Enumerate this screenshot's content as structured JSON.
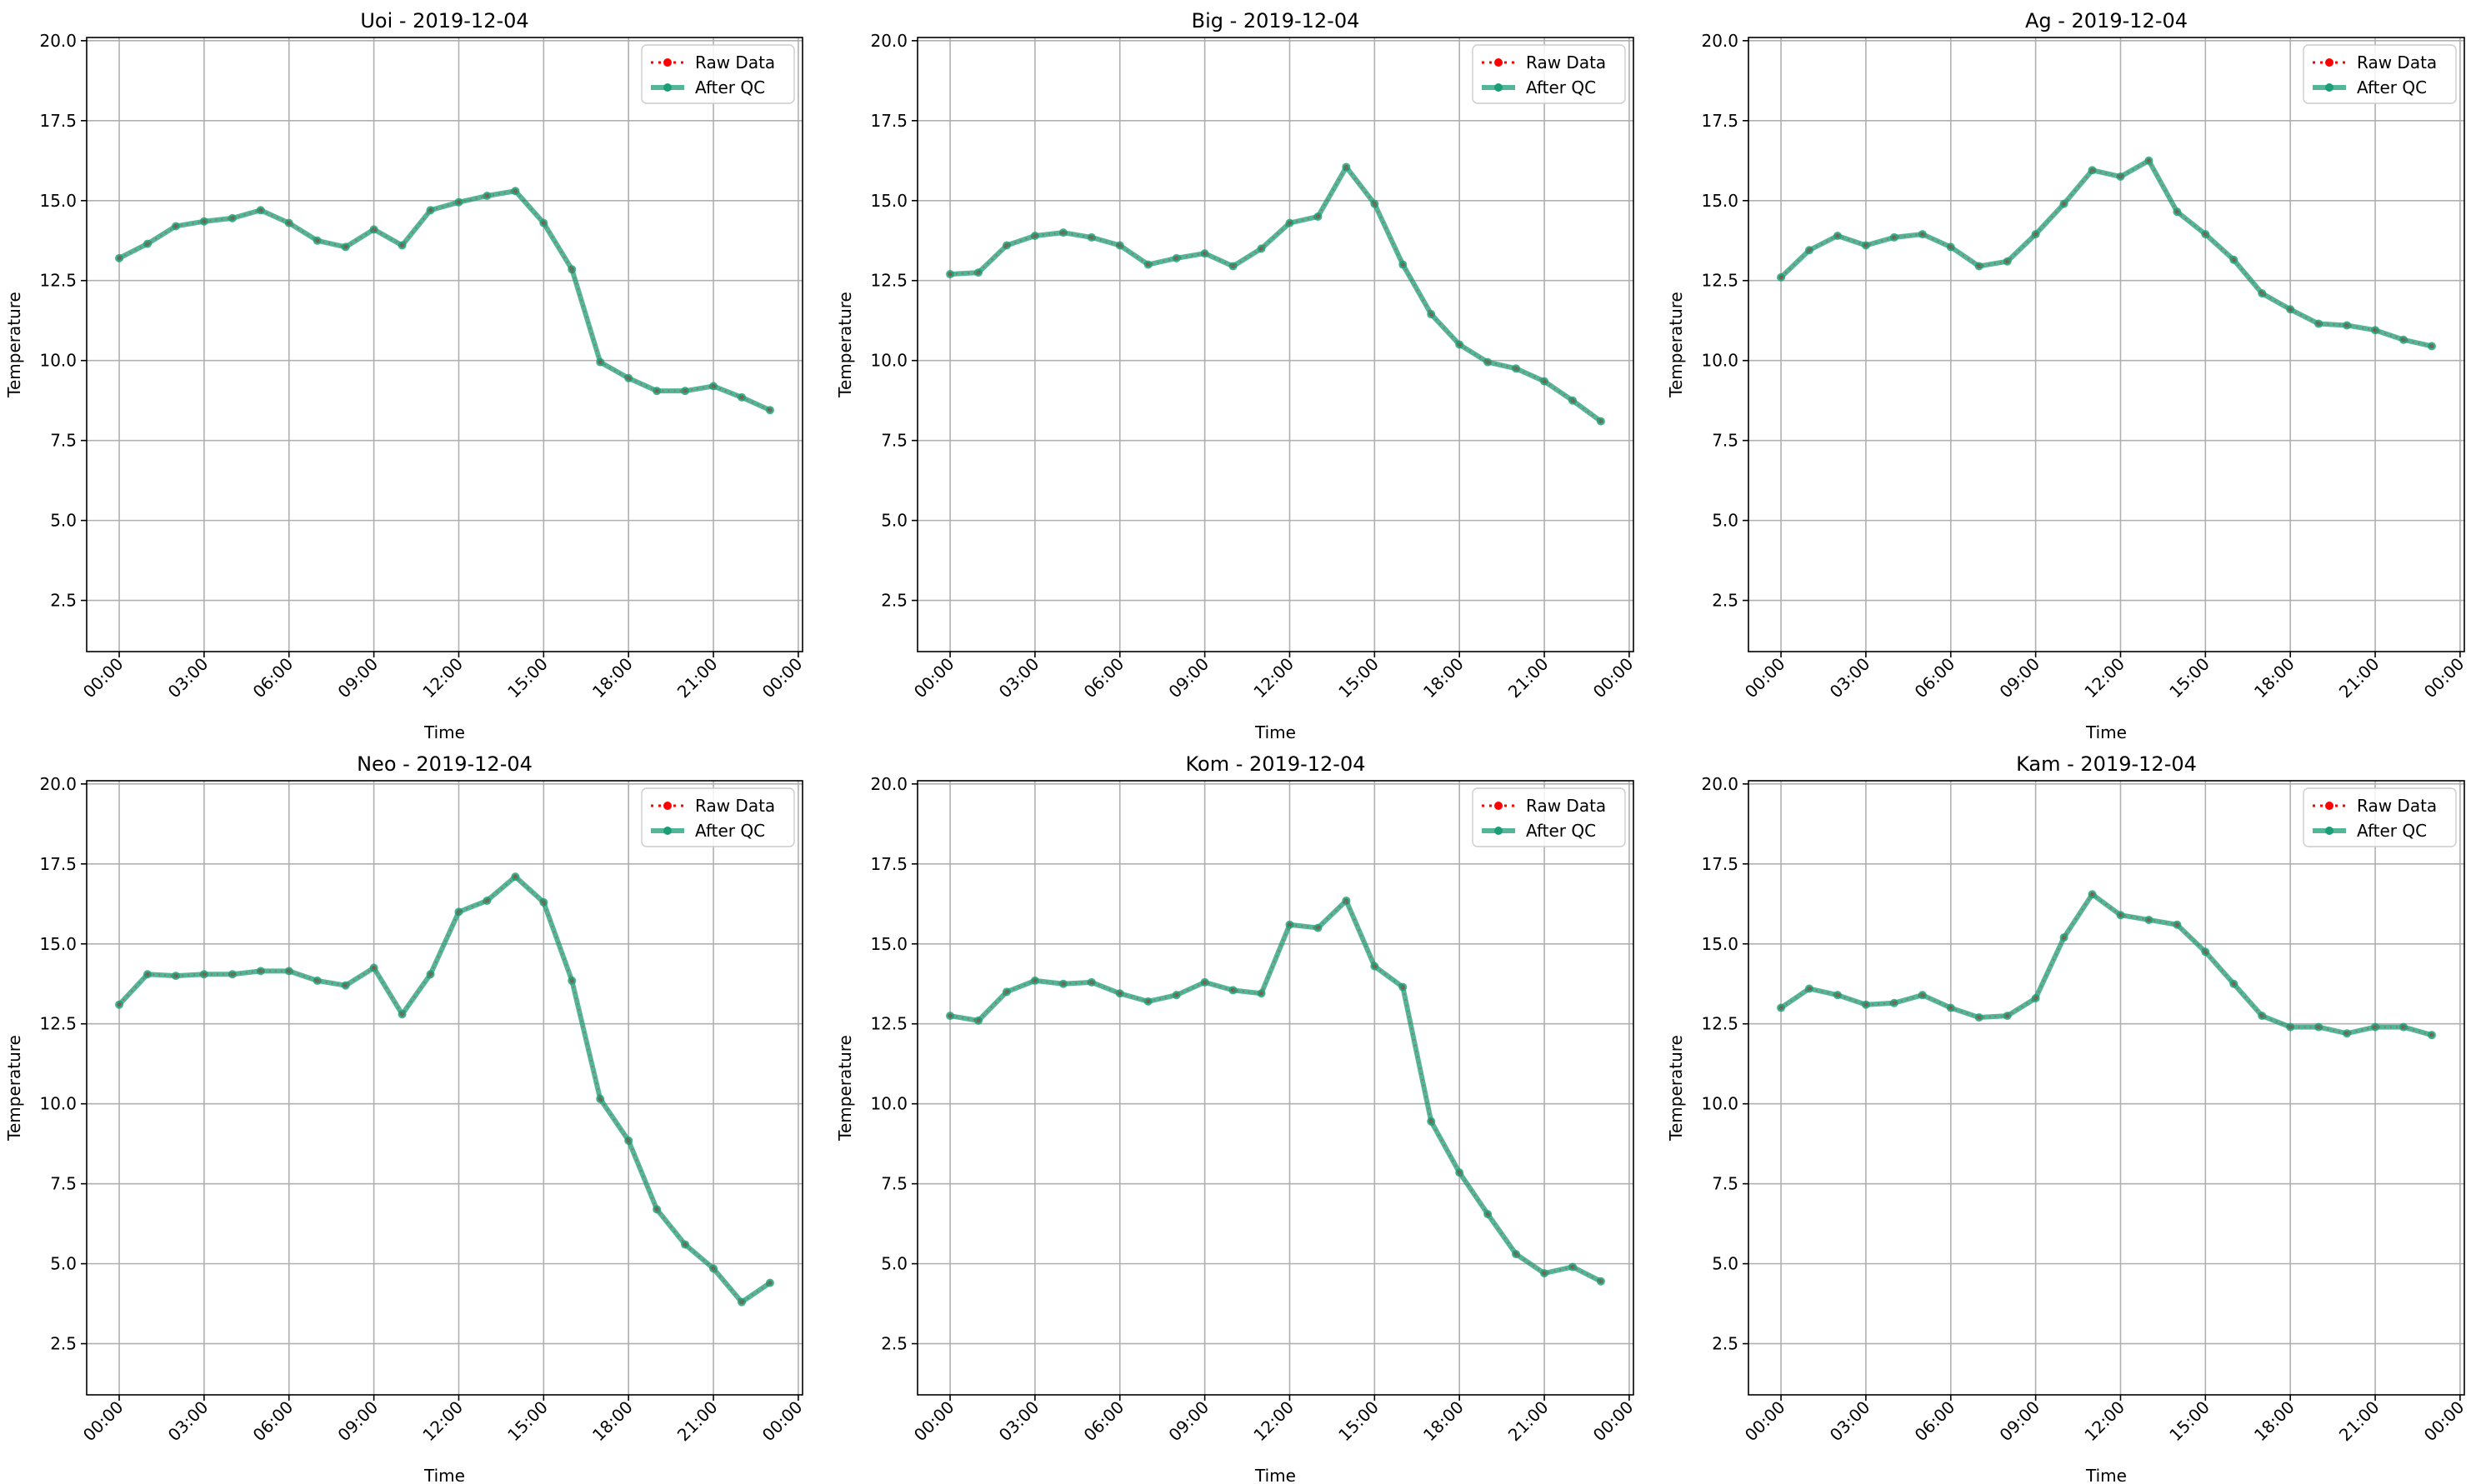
{
  "figure": {
    "legend_labels": [
      "Raw Data",
      "After QC"
    ],
    "colors": {
      "raw": "#ff0000",
      "qc": "#1b9e77",
      "grid": "#b0b0b0",
      "axis": "#000000"
    }
  },
  "chart_data": [
    {
      "type": "line",
      "title": "Uoi - 2019-12-04",
      "xlabel": "Time",
      "ylabel": "Temperature",
      "x_ticks": [
        "00:00",
        "03:00",
        "06:00",
        "09:00",
        "12:00",
        "15:00",
        "18:00",
        "21:00",
        "00:00"
      ],
      "y_ticks": [
        "2.5",
        "5.0",
        "7.5",
        "10.0",
        "12.5",
        "15.0",
        "17.5",
        "20.0"
      ],
      "ylim": [
        0.9,
        20.1
      ],
      "xlim_hours": [
        -1.15,
        24.15
      ],
      "grid": true,
      "legend_position": "top-right",
      "x_hours": [
        0,
        1,
        2,
        3,
        4,
        5,
        6,
        7,
        8,
        9,
        10,
        11,
        12,
        13,
        14,
        15,
        16,
        17,
        18,
        19,
        20,
        21,
        22,
        23
      ],
      "series": [
        {
          "name": "Raw Data",
          "values": [
            13.2,
            13.65,
            14.2,
            14.35,
            14.45,
            14.7,
            14.3,
            13.75,
            13.55,
            14.1,
            13.6,
            14.7,
            14.95,
            15.15,
            15.3,
            14.3,
            12.85,
            9.95,
            9.45,
            9.05,
            9.05,
            9.2,
            8.85,
            8.45
          ]
        },
        {
          "name": "After QC",
          "values": [
            13.2,
            13.65,
            14.2,
            14.35,
            14.45,
            14.7,
            14.3,
            13.75,
            13.55,
            14.1,
            13.6,
            14.7,
            14.95,
            15.15,
            15.3,
            14.3,
            12.85,
            9.95,
            9.45,
            9.05,
            9.05,
            9.2,
            8.85,
            8.45
          ]
        }
      ]
    },
    {
      "type": "line",
      "title": "Big - 2019-12-04",
      "xlabel": "Time",
      "ylabel": "Temperature",
      "x_ticks": [
        "00:00",
        "03:00",
        "06:00",
        "09:00",
        "12:00",
        "15:00",
        "18:00",
        "21:00",
        "00:00"
      ],
      "y_ticks": [
        "2.5",
        "5.0",
        "7.5",
        "10.0",
        "12.5",
        "15.0",
        "17.5",
        "20.0"
      ],
      "ylim": [
        0.9,
        20.1
      ],
      "xlim_hours": [
        -1.15,
        24.15
      ],
      "grid": true,
      "legend_position": "top-right",
      "x_hours": [
        0,
        1,
        2,
        3,
        4,
        5,
        6,
        7,
        8,
        9,
        10,
        11,
        12,
        13,
        14,
        15,
        16,
        17,
        18,
        19,
        20,
        21,
        22,
        23
      ],
      "series": [
        {
          "name": "Raw Data",
          "values": [
            12.7,
            12.75,
            13.6,
            13.9,
            14.0,
            13.85,
            13.6,
            13.0,
            13.2,
            13.35,
            12.95,
            13.5,
            14.3,
            14.5,
            16.05,
            14.9,
            13.0,
            11.45,
            10.5,
            9.95,
            9.75,
            9.35,
            8.75,
            8.1
          ]
        },
        {
          "name": "After QC",
          "values": [
            12.7,
            12.75,
            13.6,
            13.9,
            14.0,
            13.85,
            13.6,
            13.0,
            13.2,
            13.35,
            12.95,
            13.5,
            14.3,
            14.5,
            16.05,
            14.9,
            13.0,
            11.45,
            10.5,
            9.95,
            9.75,
            9.35,
            8.75,
            8.1
          ]
        }
      ]
    },
    {
      "type": "line",
      "title": "Ag - 2019-12-04",
      "xlabel": "Time",
      "ylabel": "Temperature",
      "x_ticks": [
        "00:00",
        "03:00",
        "06:00",
        "09:00",
        "12:00",
        "15:00",
        "18:00",
        "21:00",
        "00:00"
      ],
      "y_ticks": [
        "2.5",
        "5.0",
        "7.5",
        "10.0",
        "12.5",
        "15.0",
        "17.5",
        "20.0"
      ],
      "ylim": [
        0.9,
        20.1
      ],
      "xlim_hours": [
        -1.15,
        24.15
      ],
      "grid": true,
      "legend_position": "top-right",
      "x_hours": [
        0,
        1,
        2,
        3,
        4,
        5,
        6,
        7,
        8,
        9,
        10,
        11,
        12,
        13,
        14,
        15,
        16,
        17,
        18,
        19,
        20,
        21,
        22,
        23
      ],
      "series": [
        {
          "name": "Raw Data",
          "values": [
            12.6,
            13.45,
            13.9,
            13.6,
            13.85,
            13.95,
            13.55,
            12.95,
            13.1,
            13.95,
            14.9,
            15.95,
            15.75,
            16.25,
            14.65,
            13.95,
            13.15,
            12.1,
            11.6,
            11.15,
            11.1,
            10.95,
            10.65,
            10.45
          ]
        },
        {
          "name": "After QC",
          "values": [
            12.6,
            13.45,
            13.9,
            13.6,
            13.85,
            13.95,
            13.55,
            12.95,
            13.1,
            13.95,
            14.9,
            15.95,
            15.75,
            16.25,
            14.65,
            13.95,
            13.15,
            12.1,
            11.6,
            11.15,
            11.1,
            10.95,
            10.65,
            10.45
          ]
        }
      ]
    },
    {
      "type": "line",
      "title": "Neo - 2019-12-04",
      "xlabel": "Time",
      "ylabel": "Temperature",
      "x_ticks": [
        "00:00",
        "03:00",
        "06:00",
        "09:00",
        "12:00",
        "15:00",
        "18:00",
        "21:00",
        "00:00"
      ],
      "y_ticks": [
        "2.5",
        "5.0",
        "7.5",
        "10.0",
        "12.5",
        "15.0",
        "17.5",
        "20.0"
      ],
      "ylim": [
        0.9,
        20.1
      ],
      "xlim_hours": [
        -1.15,
        24.15
      ],
      "grid": true,
      "legend_position": "top-right",
      "x_hours": [
        0,
        1,
        2,
        3,
        4,
        5,
        6,
        7,
        8,
        9,
        10,
        11,
        12,
        13,
        14,
        15,
        16,
        17,
        18,
        19,
        20,
        21,
        22,
        23
      ],
      "series": [
        {
          "name": "Raw Data",
          "values": [
            13.1,
            14.05,
            14.0,
            14.05,
            14.05,
            14.15,
            14.15,
            13.85,
            13.7,
            14.25,
            12.8,
            14.05,
            16.0,
            16.35,
            17.1,
            16.3,
            13.85,
            10.15,
            8.85,
            6.7,
            5.6,
            4.85,
            3.8,
            4.4
          ]
        },
        {
          "name": "After QC",
          "values": [
            13.1,
            14.05,
            14.0,
            14.05,
            14.05,
            14.15,
            14.15,
            13.85,
            13.7,
            14.25,
            12.8,
            14.05,
            16.0,
            16.35,
            17.1,
            16.3,
            13.85,
            10.15,
            8.85,
            6.7,
            5.6,
            4.85,
            3.8,
            4.4
          ]
        }
      ]
    },
    {
      "type": "line",
      "title": "Kom - 2019-12-04",
      "xlabel": "Time",
      "ylabel": "Temperature",
      "x_ticks": [
        "00:00",
        "03:00",
        "06:00",
        "09:00",
        "12:00",
        "15:00",
        "18:00",
        "21:00",
        "00:00"
      ],
      "y_ticks": [
        "2.5",
        "5.0",
        "7.5",
        "10.0",
        "12.5",
        "15.0",
        "17.5",
        "20.0"
      ],
      "ylim": [
        0.9,
        20.1
      ],
      "xlim_hours": [
        -1.15,
        24.15
      ],
      "grid": true,
      "legend_position": "top-right",
      "x_hours": [
        0,
        1,
        2,
        3,
        4,
        5,
        6,
        7,
        8,
        9,
        10,
        11,
        12,
        13,
        14,
        15,
        16,
        17,
        18,
        19,
        20,
        21,
        22,
        23
      ],
      "series": [
        {
          "name": "Raw Data",
          "values": [
            12.75,
            12.6,
            13.5,
            13.85,
            13.75,
            13.8,
            13.45,
            13.2,
            13.4,
            13.8,
            13.55,
            13.45,
            15.6,
            15.5,
            16.35,
            14.3,
            13.65,
            9.45,
            7.85,
            6.55,
            5.3,
            4.7,
            4.9,
            4.45
          ]
        },
        {
          "name": "After QC",
          "values": [
            12.75,
            12.6,
            13.5,
            13.85,
            13.75,
            13.8,
            13.45,
            13.2,
            13.4,
            13.8,
            13.55,
            13.45,
            15.6,
            15.5,
            16.35,
            14.3,
            13.65,
            9.45,
            7.85,
            6.55,
            5.3,
            4.7,
            4.9,
            4.45
          ]
        }
      ]
    },
    {
      "type": "line",
      "title": "Kam - 2019-12-04",
      "xlabel": "Time",
      "ylabel": "Temperature",
      "x_ticks": [
        "00:00",
        "03:00",
        "06:00",
        "09:00",
        "12:00",
        "15:00",
        "18:00",
        "21:00",
        "00:00"
      ],
      "y_ticks": [
        "2.5",
        "5.0",
        "7.5",
        "10.0",
        "12.5",
        "15.0",
        "17.5",
        "20.0"
      ],
      "ylim": [
        0.9,
        20.1
      ],
      "xlim_hours": [
        -1.15,
        24.15
      ],
      "grid": true,
      "legend_position": "top-right",
      "x_hours": [
        0,
        1,
        2,
        3,
        4,
        5,
        6,
        7,
        8,
        9,
        10,
        11,
        12,
        13,
        14,
        15,
        16,
        17,
        18,
        19,
        20,
        21,
        22,
        23
      ],
      "series": [
        {
          "name": "Raw Data",
          "values": [
            13.0,
            13.6,
            13.4,
            13.1,
            13.15,
            13.4,
            13.0,
            12.7,
            12.75,
            13.3,
            15.2,
            16.55,
            15.9,
            15.75,
            15.6,
            14.75,
            13.75,
            12.75,
            12.4,
            12.4,
            12.2,
            12.4,
            12.4,
            12.15
          ]
        },
        {
          "name": "After QC",
          "values": [
            13.0,
            13.6,
            13.4,
            13.1,
            13.15,
            13.4,
            13.0,
            12.7,
            12.75,
            13.3,
            15.2,
            16.55,
            15.9,
            15.75,
            15.6,
            14.75,
            13.75,
            12.75,
            12.4,
            12.4,
            12.2,
            12.4,
            12.4,
            12.15
          ]
        }
      ]
    }
  ]
}
